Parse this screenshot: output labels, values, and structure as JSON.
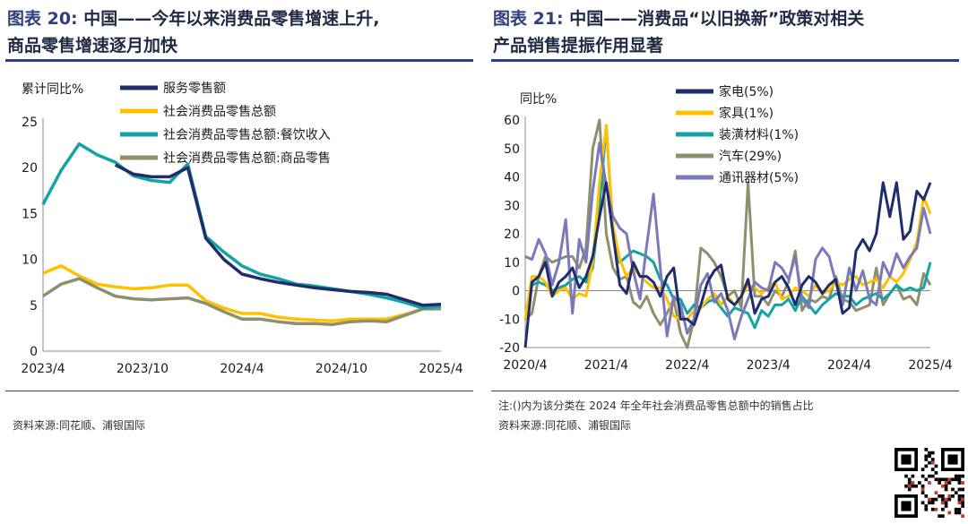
{
  "left": {
    "label": "图表 20:",
    "title_line1": "中国——今年以来消费品零售增速上升,",
    "title_line2": "商品零售增速逐月加快",
    "source": "资料来源:同花顺、浦银国际"
  },
  "right": {
    "label": "图表 21:",
    "title_line1": "中国——消费品“以旧换新”政策对相关",
    "title_line2": "产品销售提振作用显著",
    "note": "注:()内为该分类在 2024 年全年社会消费品零售总额中的销售占比",
    "source": "资料来源:同花顺、浦银国际"
  },
  "chart_data": [
    {
      "type": "line",
      "ylabel": "累计同比%",
      "ylim": [
        0,
        25
      ],
      "yticks": [
        0,
        5,
        10,
        15,
        20,
        25
      ],
      "x_tick_labels": [
        "2023/4",
        "2023/10",
        "2024/4",
        "2024/10",
        "2025/4"
      ],
      "legend_position": "top",
      "x": [
        "2023/4",
        "2023/5",
        "2023/6",
        "2023/7",
        "2023/8",
        "2023/9",
        "2023/10",
        "2023/11",
        "2023/12",
        "2024/1-2",
        "2024/3",
        "2024/4",
        "2024/5",
        "2024/6",
        "2024/7",
        "2024/8",
        "2024/9",
        "2024/10",
        "2024/11",
        "2024/12",
        "2025/1-2",
        "2025/3",
        "2025/4"
      ],
      "series": [
        {
          "name": "服务零售额",
          "color": "#1f2d6b",
          "values": [
            null,
            null,
            null,
            null,
            20.3,
            19.3,
            19.0,
            19.0,
            20.0,
            12.3,
            10.0,
            8.4,
            7.9,
            7.5,
            7.2,
            6.9,
            6.7,
            6.5,
            6.4,
            6.2,
            5.6,
            5.0,
            5.1
          ]
        },
        {
          "name": "社会消费品零售总额",
          "color": "#ffc000",
          "values": [
            8.5,
            9.3,
            8.2,
            7.3,
            7.0,
            6.8,
            6.9,
            7.2,
            7.2,
            5.5,
            4.7,
            4.1,
            4.1,
            3.7,
            3.5,
            3.4,
            3.3,
            3.5,
            3.5,
            3.5,
            4.0,
            4.6,
            4.7
          ]
        },
        {
          "name": "社会消费品零售总额:餐饮收入",
          "color": "#13a3a3",
          "values": [
            16.0,
            19.7,
            22.6,
            21.4,
            20.6,
            19.1,
            18.6,
            18.4,
            20.4,
            12.5,
            10.8,
            9.3,
            8.4,
            7.9,
            7.3,
            7.1,
            6.8,
            6.5,
            6.2,
            5.8,
            5.3,
            4.7,
            4.9
          ]
        },
        {
          "name": "社会消费品零售总额:商品零售",
          "color": "#8f8f6e",
          "values": [
            6.0,
            7.3,
            7.9,
            6.9,
            6.0,
            5.7,
            5.6,
            5.7,
            5.8,
            5.2,
            4.3,
            3.5,
            3.5,
            3.2,
            3.0,
            3.0,
            2.9,
            3.2,
            3.3,
            3.2,
            3.9,
            4.6,
            4.6
          ]
        }
      ]
    },
    {
      "type": "line",
      "ylabel": "同比%",
      "ylim": [
        -20,
        60
      ],
      "yticks": [
        -20,
        -10,
        0,
        10,
        20,
        30,
        40,
        50,
        60
      ],
      "x_tick_labels": [
        "2020/4",
        "2021/4",
        "2022/4",
        "2023/4",
        "2024/4",
        "2025/4"
      ],
      "legend_position": "top",
      "x_count": 61,
      "series": [
        {
          "name": "家电(5%)",
          "color": "#1f2d6b",
          "values": [
            -20,
            3,
            5,
            10,
            -2,
            3,
            5,
            8,
            1,
            5,
            12,
            26,
            38,
            20,
            2,
            -1,
            10,
            5,
            5,
            3,
            -2,
            5,
            8,
            -10,
            -10,
            -12,
            -5,
            3,
            7,
            9,
            -3,
            -5,
            -2,
            4,
            -8,
            -3,
            -2,
            3,
            5,
            1,
            -5,
            2,
            5,
            3,
            -1,
            2,
            4,
            -8,
            -6,
            14,
            18,
            14,
            20,
            38,
            26,
            38,
            18,
            21,
            35,
            32,
            38
          ]
        },
        {
          "name": "家具(1%)",
          "color": "#ffc000",
          "values": [
            -10,
            5,
            5,
            3,
            -2,
            0,
            1,
            -3,
            -1,
            -2,
            10,
            38,
            58,
            23,
            11,
            5,
            8,
            5,
            3,
            1,
            1,
            -3,
            -9,
            -10,
            -10,
            -7,
            -6,
            -3,
            -1,
            -5,
            -2,
            -5,
            -2,
            2,
            1,
            -1,
            1,
            3,
            -3,
            -2,
            1,
            0,
            -2,
            2,
            -1,
            0,
            3,
            2,
            4,
            5,
            2,
            3,
            4,
            1,
            5,
            3,
            6,
            11,
            17,
            33,
            27
          ]
        },
        {
          "name": "装潢材料(1%)",
          "color": "#13a3a3",
          "values": [
            -10,
            2,
            3,
            2,
            0,
            1,
            2,
            4,
            5,
            3,
            8,
            30,
            58,
            21,
            10,
            12,
            14,
            13,
            12,
            10,
            4,
            2,
            -3,
            -3,
            -8,
            -5,
            -6,
            -4,
            -3,
            -6,
            -9,
            -6,
            -7,
            -8,
            -13,
            -7,
            -9,
            -5,
            -5,
            -3,
            -7,
            -2,
            -5,
            -8,
            -5,
            -3,
            -1,
            -2,
            -2,
            -5,
            -3,
            -2,
            -1,
            -3,
            -1,
            2,
            0,
            1,
            0,
            1,
            10
          ]
        },
        {
          "name": "汽车(29%)",
          "color": "#8f8f6e",
          "values": [
            -10,
            -8,
            5,
            12,
            10,
            11,
            12,
            12,
            8,
            15,
            50,
            65,
            20,
            8,
            4,
            5,
            -4,
            -6,
            -2,
            -8,
            -12,
            -8,
            -3,
            -15,
            -30,
            -10,
            15,
            13,
            10,
            5,
            -2,
            0,
            -6,
            38,
            -2,
            -2,
            -5,
            0,
            -2,
            3,
            14,
            -7,
            -3,
            -4,
            -2,
            -3,
            5,
            -3,
            -4,
            -7,
            -6,
            -5,
            8,
            -5,
            -1,
            2,
            -3,
            -2,
            -5,
            6,
            2
          ]
        },
        {
          "name": "通讯器材(5%)",
          "color": "#7b7ab9",
          "values": [
            12,
            11,
            18,
            13,
            2,
            10,
            25,
            -8,
            18,
            10,
            35,
            52,
            37,
            26,
            22,
            20,
            7,
            -3,
            16,
            34,
            8,
            -16,
            -2,
            -5,
            -15,
            -10,
            2,
            6,
            -4,
            -1,
            -7,
            -17,
            -9,
            -3,
            3,
            1,
            0,
            10,
            8,
            4,
            12,
            -3,
            -6,
            11,
            15,
            12,
            3,
            -5,
            8,
            0,
            7,
            -3,
            -5,
            10,
            5,
            13,
            8,
            12,
            15,
            29,
            20
          ]
        }
      ]
    }
  ]
}
